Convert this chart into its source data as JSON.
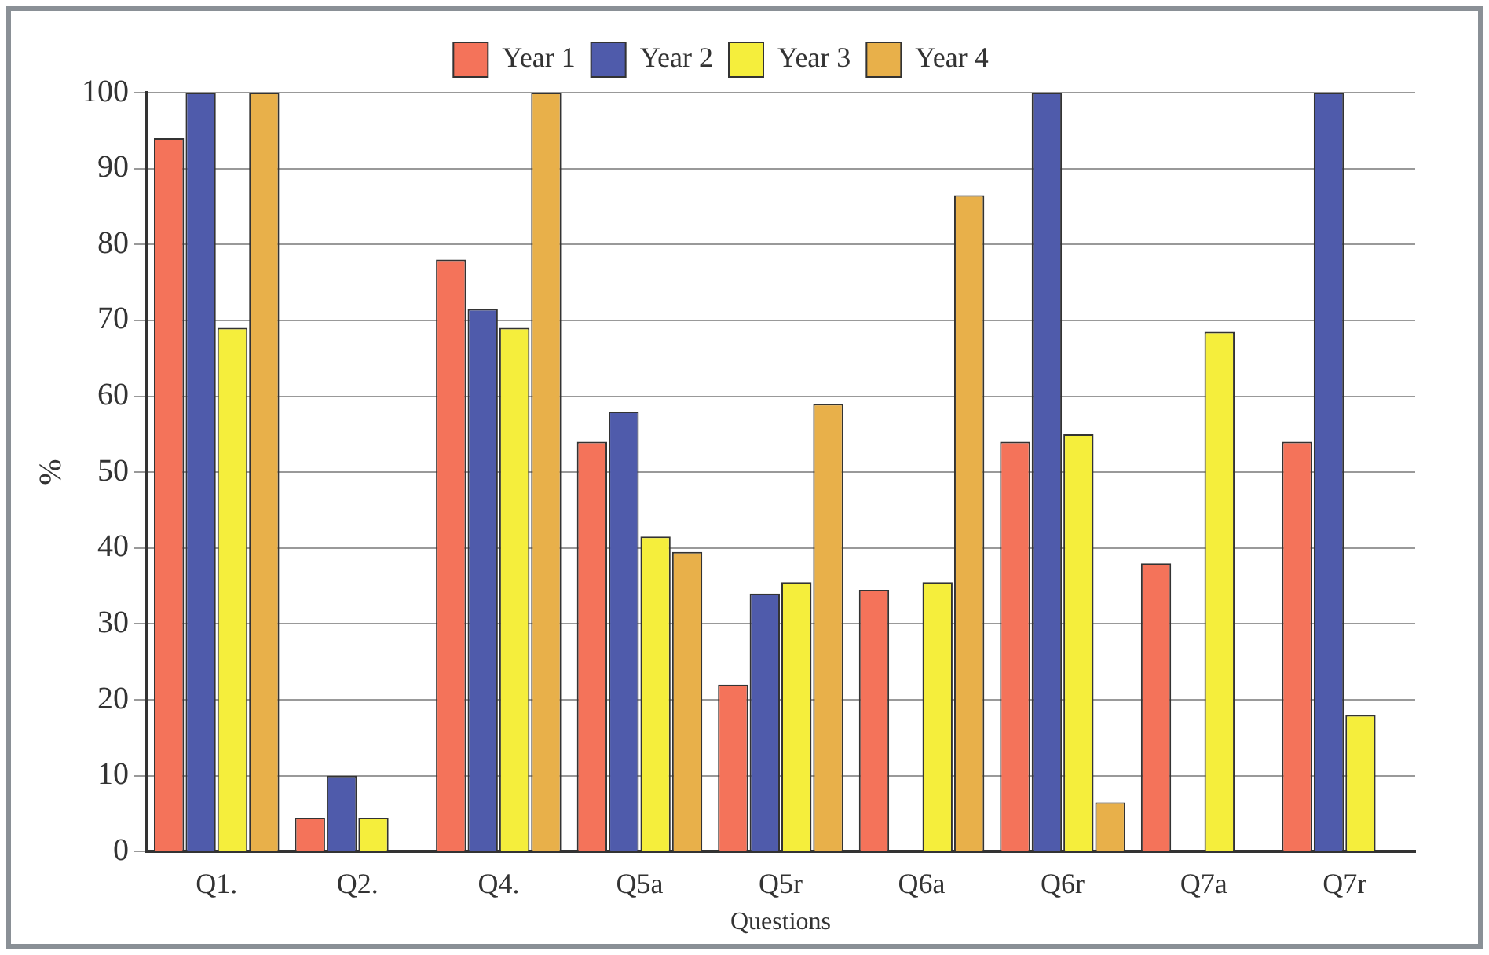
{
  "chart_data": {
    "type": "bar",
    "xlabel": "Questions",
    "ylabel": "%",
    "categories": [
      "Q1.",
      "Q2.",
      "Q4.",
      "Q5a",
      "Q5r",
      "Q6a",
      "Q6r",
      "Q7a",
      "Q7r"
    ],
    "series": [
      {
        "name": "Year 1",
        "color": "#f4735a",
        "values": [
          94,
          4.5,
          78,
          54,
          22,
          34.5,
          54,
          38,
          54
        ]
      },
      {
        "name": "Year 2",
        "color": "#4f5bab",
        "values": [
          100,
          10,
          71.5,
          58,
          34,
          null,
          100,
          null,
          100
        ]
      },
      {
        "name": "Year 3",
        "color": "#f5ee3c",
        "values": [
          69,
          4.5,
          69,
          41.5,
          35.5,
          35.5,
          55,
          68.5,
          18
        ]
      },
      {
        "name": "Year 4",
        "color": "#e8b04a",
        "values": [
          100,
          null,
          100,
          39.5,
          59,
          86.5,
          6.5,
          null,
          null
        ]
      }
    ],
    "ylim": [
      0,
      100
    ],
    "yticks": [
      0,
      10,
      20,
      30,
      40,
      50,
      60,
      70,
      80,
      90,
      100
    ],
    "grid": "y",
    "legend": "top"
  }
}
